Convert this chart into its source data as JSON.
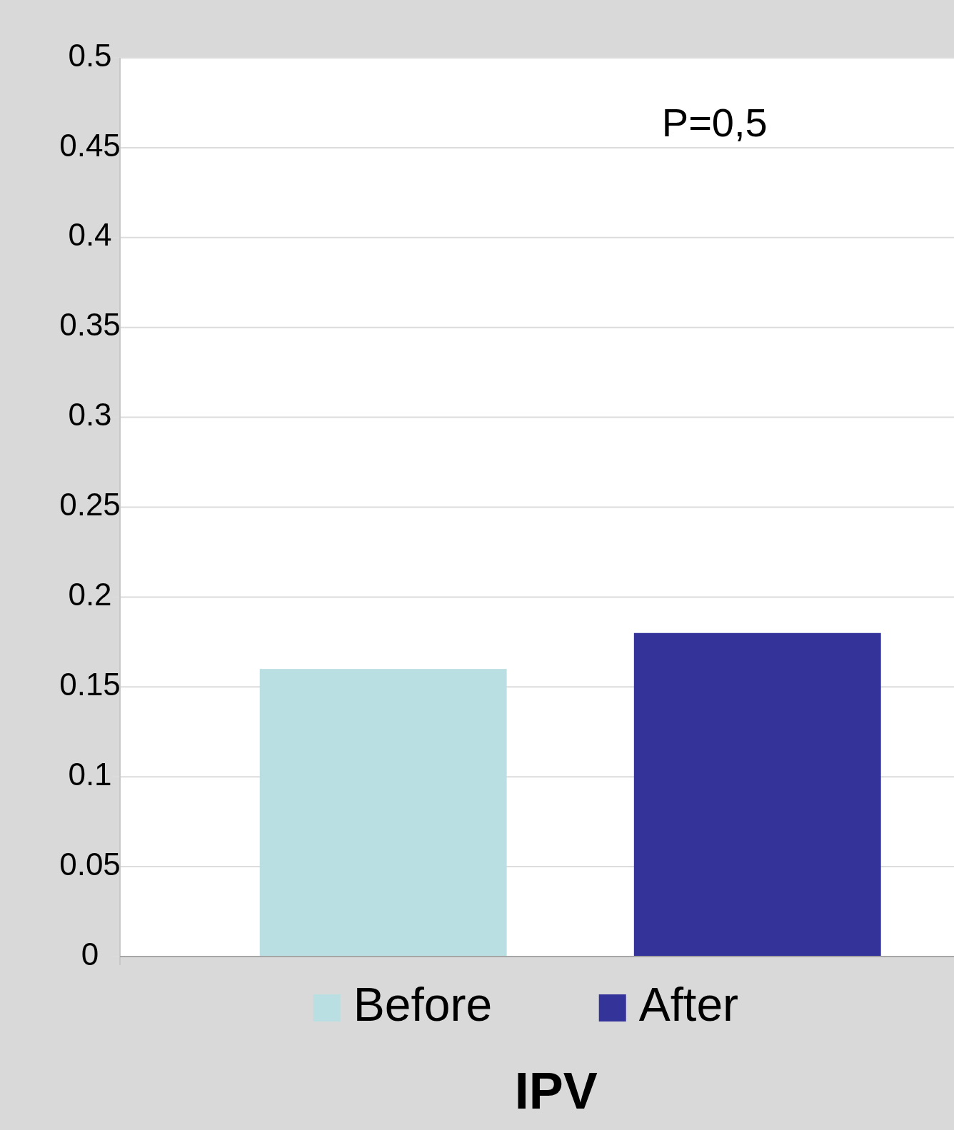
{
  "chart_data": {
    "type": "bar",
    "xlabel": "IPV",
    "categories": [
      null
    ],
    "series": [
      {
        "name": "Before",
        "color": "#badfe2",
        "values": [
          0.16
        ]
      },
      {
        "name": "After",
        "color": "#343399",
        "values": [
          0.18
        ]
      }
    ],
    "ylim": [
      0,
      0.5
    ],
    "yticks": [
      0,
      0.05,
      0.1,
      0.15,
      0.2,
      0.25,
      0.3,
      0.35,
      0.4,
      0.45,
      0.5
    ],
    "grid": "y",
    "legend": "bottom",
    "annotations": [
      "P=0,5"
    ]
  }
}
